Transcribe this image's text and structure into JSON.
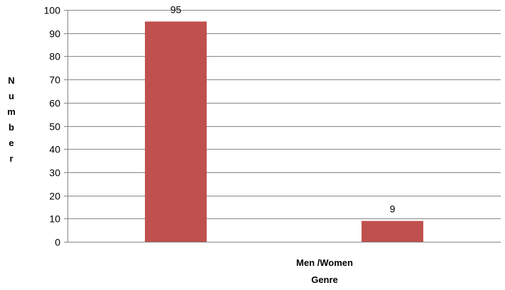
{
  "chart_data": {
    "type": "bar",
    "categories": [
      "Men",
      "Women"
    ],
    "values": [
      95,
      9
    ],
    "title": "",
    "xlabel": [
      "Men /Women",
      "Genre"
    ],
    "ylabel": "Number",
    "ylim": [
      0,
      100
    ],
    "yticks": [
      0,
      10,
      20,
      30,
      40,
      50,
      60,
      70,
      80,
      90,
      100
    ],
    "grid": true,
    "legend": "none",
    "bar_color": "#c0504d",
    "grid_color": "#868686",
    "axis_color": "#868686"
  }
}
